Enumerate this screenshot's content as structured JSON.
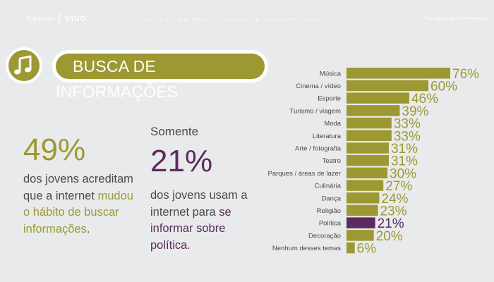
{
  "header": {
    "logo_telefonica": "Telefonica",
    "logo_vivo": "vivo",
    "download_text": "Faça download da pesquisa completa em http://fundacaotelefonica.org.br",
    "org_name": "Fundação Telefônica"
  },
  "title": "BUSCA DE INFORMAÇÕES",
  "icon": "music-note-icon",
  "left_stat": {
    "value": "49%",
    "text_before": "dos jovens acreditam que a internet ",
    "highlight": "mudou o hábito de buscar informações",
    "text_after": "."
  },
  "right_stat": {
    "prefix": "Somente",
    "value": "21%",
    "text_before": "dos jovens usam a internet para ",
    "highlight": "se informar sobre política",
    "text_after": "."
  },
  "colors": {
    "olive": "#9c9933",
    "purple": "#5b2b5e",
    "background": "#e9eaeb",
    "text": "#4a4a4a"
  },
  "chart_data": {
    "type": "bar",
    "orientation": "horizontal",
    "categories": [
      "Música",
      "Cinema / vídeo",
      "Esporte",
      "Turismo / viagem",
      "Moda",
      "Literatura",
      "Arte / fotografia",
      "Teatro",
      "Parques / áreas de lazer",
      "Culinária",
      "Dança",
      "Religião",
      "Política",
      "Decoração",
      "Nenhum desses temas"
    ],
    "values": [
      76,
      60,
      46,
      39,
      33,
      33,
      31,
      31,
      30,
      27,
      24,
      23,
      21,
      20,
      6
    ],
    "value_labels": [
      "76%",
      "60%",
      "46%",
      "39%",
      "33%",
      "33%",
      "31%",
      "31%",
      "30%",
      "27%",
      "24%",
      "23%",
      "21%",
      "20%",
      "6%"
    ],
    "highlight_category": "Política",
    "bar_color": "#9c9933",
    "highlight_color": "#5b2b5e",
    "xlim": [
      0,
      76
    ],
    "grid": false,
    "title": "",
    "xlabel": "",
    "ylabel": ""
  }
}
